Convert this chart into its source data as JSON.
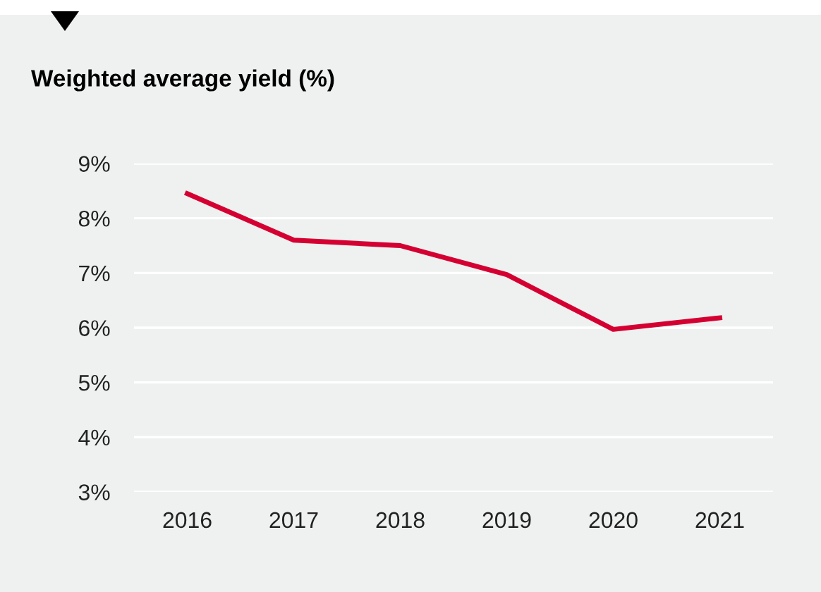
{
  "chart_data": {
    "type": "line",
    "title": "Weighted average yield (%)",
    "categories": [
      "2016",
      "2017",
      "2018",
      "2019",
      "2020",
      "2021"
    ],
    "series": [
      {
        "color": "#d50032",
        "values": [
          8.45,
          7.6,
          7.5,
          6.97,
          5.97,
          6.18
        ]
      }
    ],
    "ylim": [
      3,
      9
    ],
    "yticks": [
      {
        "value": 3,
        "label": "3%"
      },
      {
        "value": 4,
        "label": "4%"
      },
      {
        "value": 5,
        "label": "5%"
      },
      {
        "value": 6,
        "label": "6%"
      },
      {
        "value": 7,
        "label": "7%"
      },
      {
        "value": 8,
        "label": "8%"
      },
      {
        "value": 9,
        "label": "9%"
      }
    ],
    "grid": "y",
    "marker": "none",
    "line_style": "solid"
  }
}
